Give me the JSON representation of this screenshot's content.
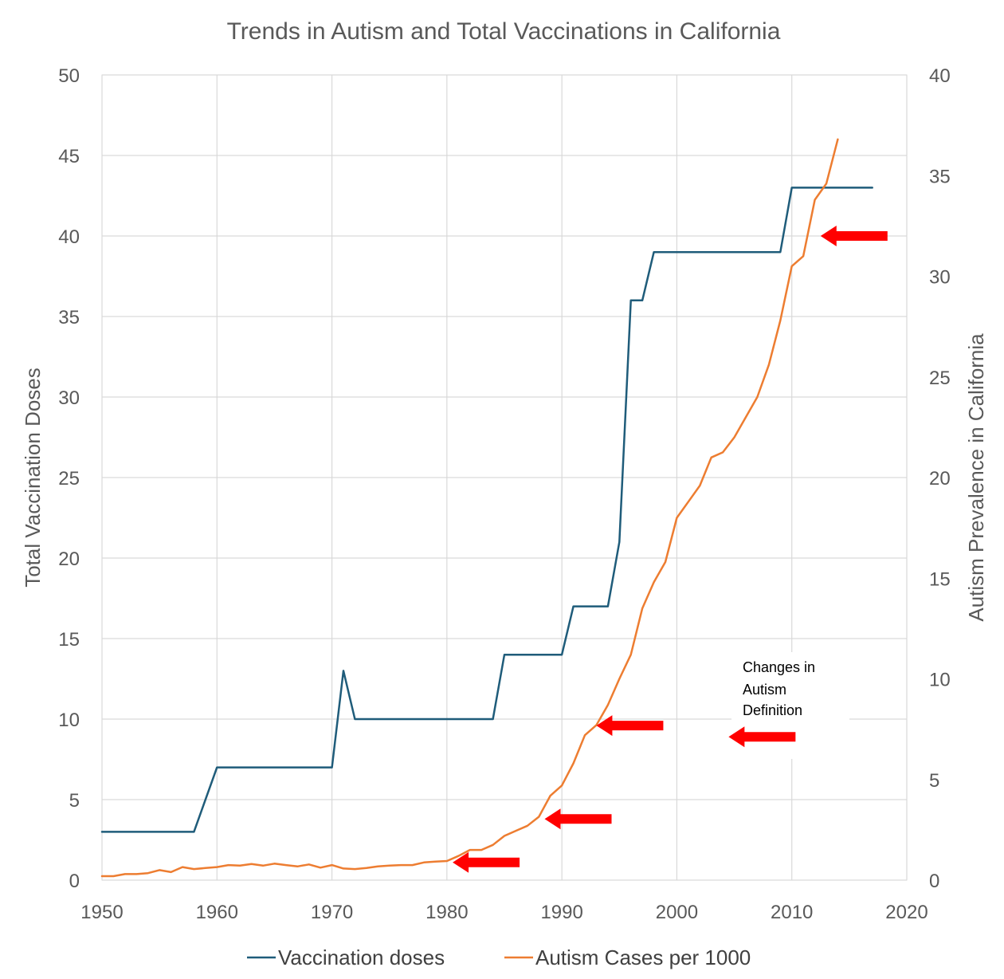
{
  "chart_data": {
    "type": "line",
    "title": "Trends in Autism and Total Vaccinations in California",
    "xlabel": "",
    "ylabel_left": "Total Vaccination Doses",
    "ylabel_right": "Autism Prevalence in California",
    "xlim": [
      1950,
      2020
    ],
    "ylim_left": [
      0,
      50
    ],
    "ylim_right": [
      0,
      40
    ],
    "x_ticks": [
      1950,
      1960,
      1970,
      1980,
      1990,
      2000,
      2010,
      2020
    ],
    "y_left_ticks": [
      0,
      5,
      10,
      15,
      20,
      25,
      30,
      35,
      40,
      45,
      50
    ],
    "y_right_ticks": [
      0,
      5,
      10,
      15,
      20,
      25,
      30,
      35,
      40
    ],
    "grid": true,
    "legend_position": "bottom",
    "series": [
      {
        "name": "Vaccination doses",
        "axis": "left",
        "color": "#1f5c7a",
        "x": [
          1950,
          1958,
          1960,
          1970,
          1971,
          1972,
          1984,
          1985,
          1990,
          1991,
          1994,
          1995,
          1996,
          1997,
          1998,
          2009,
          2010,
          2017
        ],
        "y": [
          3,
          3,
          7,
          7,
          13,
          10,
          10,
          14,
          14,
          17,
          17,
          21,
          36,
          36,
          39,
          39,
          43,
          43
        ]
      },
      {
        "name": "Autism Cases per 1000",
        "axis": "right",
        "color": "#ed7d31",
        "x": [
          1950,
          1951,
          1952,
          1953,
          1954,
          1955,
          1956,
          1957,
          1958,
          1959,
          1960,
          1961,
          1962,
          1963,
          1964,
          1965,
          1966,
          1967,
          1968,
          1969,
          1970,
          1971,
          1972,
          1973,
          1974,
          1975,
          1976,
          1977,
          1978,
          1979,
          1980,
          1981,
          1982,
          1983,
          1984,
          1985,
          1986,
          1987,
          1988,
          1989,
          1990,
          1991,
          1992,
          1993,
          1994,
          1995,
          1996,
          1997,
          1998,
          1999,
          2000,
          2001,
          2002,
          2003,
          2004,
          2005,
          2006,
          2007,
          2008,
          2009,
          2010,
          2011,
          2012,
          2013,
          2014
        ],
        "y": [
          0.2,
          0.2,
          0.3,
          0.3,
          0.35,
          0.5,
          0.4,
          0.65,
          0.55,
          0.6,
          0.65,
          0.75,
          0.72,
          0.8,
          0.72,
          0.82,
          0.75,
          0.68,
          0.78,
          0.62,
          0.75,
          0.58,
          0.55,
          0.6,
          0.68,
          0.72,
          0.75,
          0.75,
          0.88,
          0.92,
          0.95,
          1.2,
          1.5,
          1.5,
          1.75,
          2.2,
          2.45,
          2.7,
          3.15,
          4.2,
          4.7,
          5.8,
          7.2,
          7.7,
          8.7,
          10,
          11.2,
          13.5,
          14.8,
          15.8,
          18,
          18.8,
          19.6,
          21,
          21.25,
          22,
          23,
          24,
          25.6,
          27.8,
          30.5,
          31,
          33.8,
          34.6,
          36.8
        ]
      }
    ],
    "annotations": {
      "text_lines": [
        "Changes in",
        "Autism",
        "Definition"
      ],
      "arrow_color": "#ff0000",
      "arrows": [
        {
          "year": 1980.5,
          "doses": 1.1
        },
        {
          "year": 1988.5,
          "doses": 3.8
        },
        {
          "year": 1993.0,
          "doses": 9.6
        },
        {
          "year": 2004.5,
          "doses": 8.9
        },
        {
          "year": 2012.5,
          "doses": 40.0
        }
      ]
    }
  }
}
